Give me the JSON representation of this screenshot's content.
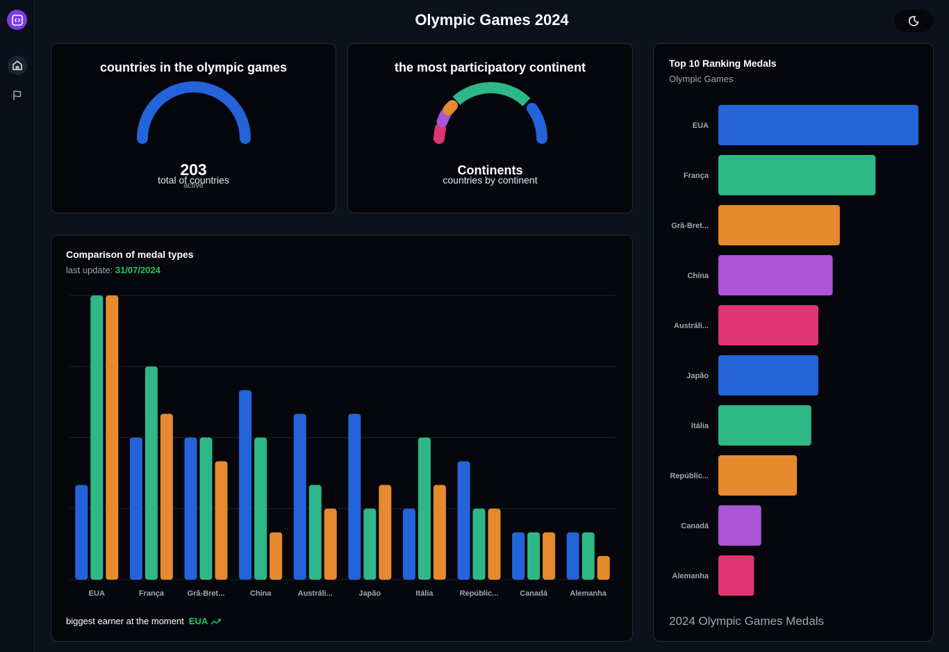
{
  "app": {
    "title": "Olympic Games 2024"
  },
  "sidebar": {
    "logo_icon": "app-logo-icon",
    "items": [
      {
        "name": "home",
        "icon": "home-icon",
        "active": true
      },
      {
        "name": "countries",
        "icon": "flag-icon",
        "active": false
      }
    ]
  },
  "header": {
    "theme_toggle_icon": "moon-stars-icon"
  },
  "countries_card": {
    "title": "countries in the olympic games",
    "value": "203",
    "value_label": "active",
    "footer": "total of countries",
    "gauge_color": "#2563db"
  },
  "continent_card": {
    "title": "the most participatory continent",
    "center_label": "Continents",
    "footer": "countries by continent",
    "segments": [
      {
        "color": "#e03570",
        "share": 0.06
      },
      {
        "color": "#ab54d6",
        "share": 0.12
      },
      {
        "color": "#e58a2e",
        "share": 0.06
      },
      {
        "color": "#2eb888",
        "share": 0.5
      },
      {
        "color": "#2563db",
        "share": 0.26
      }
    ]
  },
  "medal_comparison": {
    "title": "Comparison of medal types",
    "last_update_label": "last update:",
    "last_update_date": "31/07/2024",
    "footer_label": "biggest earner at the moment",
    "footer_value": "EUA",
    "footer_icon": "trending-up-icon"
  },
  "ranking": {
    "title": "Top 10 Ranking Medals",
    "subtitle": "Olympic Games",
    "footer": "2024 Olympic Games Medals"
  },
  "chart_data": [
    {
      "type": "bar",
      "title": "Comparison of medal types",
      "categories": [
        "EUA",
        "França",
        "Grã-Bret...",
        "China",
        "Austráli...",
        "Japão",
        "Itália",
        "Repúblic...",
        "Canadá",
        "Alemanha"
      ],
      "series": [
        {
          "values": [
            8,
            12,
            12,
            16,
            14,
            14,
            6,
            10,
            4,
            4
          ],
          "color": "#2563db"
        },
        {
          "values": [
            24,
            18,
            12,
            12,
            8,
            6,
            12,
            6,
            4,
            4
          ],
          "color": "#2eb888"
        },
        {
          "values": [
            24,
            14,
            10,
            4,
            6,
            8,
            8,
            6,
            4,
            2
          ],
          "color": "#e58a2e"
        }
      ],
      "ylim": [
        0,
        24
      ],
      "grid": true
    },
    {
      "type": "bar",
      "orientation": "horizontal",
      "title": "Top 10 Ranking Medals",
      "categories": [
        "EUA",
        "França",
        "Grã-Bret...",
        "China",
        "Austráli...",
        "Japão",
        "Itália",
        "Repúblic...",
        "Canadá",
        "Alemanha"
      ],
      "values": [
        56,
        44,
        34,
        32,
        28,
        28,
        26,
        22,
        12,
        10
      ],
      "colors": [
        "#2563db",
        "#2eb888",
        "#e58a2e",
        "#ab54d6",
        "#e03570",
        "#2563db",
        "#2eb888",
        "#e58a2e",
        "#ab54d6",
        "#e03570"
      ],
      "xlim": [
        0,
        56
      ]
    }
  ]
}
